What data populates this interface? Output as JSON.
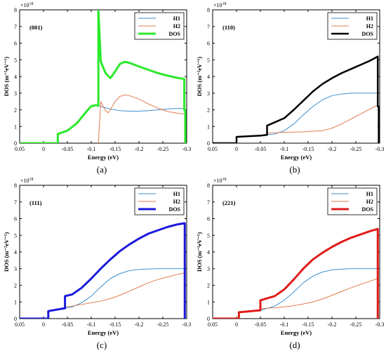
{
  "chart_data": [
    {
      "type": "line",
      "panel_label": "(001)",
      "caption": "(a)",
      "xlabel": "Energy (eV)",
      "ylabel": "DOS (m⁻²eV⁻¹)",
      "y_exponent": "×10",
      "y_exponent_power": "18",
      "xlim": [
        0.05,
        -0.3
      ],
      "ylim": [
        0,
        8
      ],
      "xticks": [
        0.05,
        0,
        -0.05,
        -0.1,
        -0.15,
        -0.2,
        -0.25,
        -0.3
      ],
      "xtick_labels": [
        "0.05",
        "0",
        "-0.05",
        "-0.1",
        "-0.15",
        "-0.2",
        "-0.25",
        "-0.3"
      ],
      "yticks": [
        0,
        1,
        2,
        3,
        4,
        5,
        6,
        7,
        8
      ],
      "ytick_labels": [
        "0",
        "1",
        "2",
        "3",
        "4",
        "5",
        "6",
        "7",
        "8"
      ],
      "grid": false,
      "legend_position": "top-right",
      "series": [
        {
          "name": "H1",
          "color": "#3a8fd0",
          "width": 1,
          "x": [
            -0.03,
            -0.05,
            -0.07,
            -0.09,
            -0.1,
            -0.11,
            -0.12,
            -0.14,
            -0.16,
            -0.18,
            -0.2,
            -0.22,
            -0.24,
            -0.26,
            -0.28,
            -0.296
          ],
          "y": [
            0.55,
            0.75,
            1.2,
            1.9,
            2.22,
            2.28,
            2.2,
            2.05,
            1.95,
            1.92,
            1.92,
            1.95,
            2.0,
            2.05,
            2.08,
            2.08
          ]
        },
        {
          "name": "H2",
          "color": "#e07b4f",
          "width": 1,
          "x": [
            -0.115,
            -0.12,
            -0.125,
            -0.13,
            -0.135,
            -0.14,
            -0.15,
            -0.16,
            -0.17,
            -0.18,
            -0.2,
            -0.22,
            -0.24,
            -0.26,
            -0.28,
            -0.295
          ],
          "y": [
            0,
            2.5,
            2.2,
            1.95,
            1.82,
            2.0,
            2.5,
            2.8,
            2.9,
            2.85,
            2.65,
            2.35,
            2.1,
            1.9,
            1.8,
            1.75
          ]
        },
        {
          "name": "DOS",
          "color": "#2be82b",
          "width": 3,
          "x": [
            0.05,
            -0.03,
            -0.03,
            -0.05,
            -0.07,
            -0.09,
            -0.1,
            -0.11,
            -0.115,
            -0.115,
            -0.12,
            -0.13,
            -0.14,
            -0.15,
            -0.16,
            -0.17,
            -0.18,
            -0.2,
            -0.22,
            -0.24,
            -0.26,
            -0.28,
            -0.295,
            -0.295,
            -0.297,
            -0.297
          ],
          "y": [
            0,
            0,
            0.55,
            0.75,
            1.2,
            1.9,
            2.22,
            2.28,
            2.25,
            8.0,
            4.9,
            4.2,
            3.9,
            4.3,
            4.75,
            4.88,
            4.82,
            4.6,
            4.4,
            4.2,
            4.05,
            3.92,
            3.85,
            2.0,
            2.0,
            0
          ]
        }
      ]
    },
    {
      "type": "line",
      "panel_label": "(110)",
      "caption": "(b)",
      "xlabel": "Energy (eV)",
      "ylabel": "DOS (m⁻²eV⁻¹)",
      "y_exponent": "×10",
      "y_exponent_power": "18",
      "xlim": [
        0.05,
        -0.3
      ],
      "ylim": [
        0,
        8
      ],
      "xticks": [
        0.05,
        0,
        -0.05,
        -0.1,
        -0.15,
        -0.2,
        -0.25,
        -0.3
      ],
      "xtick_labels": [
        "0.05",
        "0",
        "-0.05",
        "-0.1",
        "-0.15",
        "-0.2",
        "-0.25",
        "-0.3"
      ],
      "yticks": [
        0,
        1,
        2,
        3,
        4,
        5,
        6,
        7,
        8
      ],
      "ytick_labels": [
        "0",
        "1",
        "2",
        "3",
        "4",
        "5",
        "6",
        "7",
        "8"
      ],
      "grid": false,
      "legend_position": "top-right",
      "series": [
        {
          "name": "H1",
          "color": "#3a8fd0",
          "width": 1,
          "x": [
            0.0,
            -0.05,
            -0.08,
            -0.1,
            -0.12,
            -0.14,
            -0.16,
            -0.18,
            -0.2,
            -0.22,
            -0.24,
            -0.26,
            -0.28,
            -0.296
          ],
          "y": [
            0.38,
            0.45,
            0.55,
            0.75,
            1.15,
            1.7,
            2.2,
            2.6,
            2.85,
            2.95,
            3.0,
            3.0,
            3.0,
            3.0
          ]
        },
        {
          "name": "H2",
          "color": "#e07b4f",
          "width": 1,
          "x": [
            -0.064,
            -0.08,
            -0.1,
            -0.14,
            -0.18,
            -0.2,
            -0.22,
            -0.24,
            -0.26,
            -0.28,
            -0.296
          ],
          "y": [
            0.6,
            0.62,
            0.65,
            0.68,
            0.75,
            0.9,
            1.15,
            1.45,
            1.75,
            2.05,
            2.3
          ]
        },
        {
          "name": "DOS",
          "color": "#000000",
          "width": 2.5,
          "x": [
            0.05,
            0.0,
            0.0,
            -0.05,
            -0.064,
            -0.064,
            -0.08,
            -0.1,
            -0.12,
            -0.14,
            -0.16,
            -0.18,
            -0.2,
            -0.22,
            -0.24,
            -0.26,
            -0.28,
            -0.296,
            -0.296,
            -0.298,
            -0.298
          ],
          "y": [
            0,
            0,
            0.38,
            0.45,
            0.5,
            1.05,
            1.25,
            1.5,
            2.0,
            2.55,
            3.1,
            3.55,
            3.9,
            4.2,
            4.45,
            4.7,
            4.95,
            5.2,
            2.2,
            2.2,
            0
          ]
        }
      ]
    },
    {
      "type": "line",
      "panel_label": "(111)",
      "caption": "(c)",
      "xlabel": "Energy (eV)",
      "ylabel": "DOS (m⁻²eV⁻¹)",
      "y_exponent": "×10",
      "y_exponent_power": "18",
      "xlim": [
        0.05,
        -0.3
      ],
      "ylim": [
        0,
        8
      ],
      "xticks": [
        0.05,
        0,
        -0.05,
        -0.1,
        -0.15,
        -0.2,
        -0.25,
        -0.3
      ],
      "xtick_labels": [
        "0.05",
        "0",
        "-0.05",
        "-0.1",
        "-0.15",
        "-0.2",
        "-0.25",
        "-0.3"
      ],
      "yticks": [
        0,
        1,
        2,
        3,
        4,
        5,
        6,
        7,
        8
      ],
      "ytick_labels": [
        "0",
        "1",
        "2",
        "3",
        "4",
        "5",
        "6",
        "7",
        "8"
      ],
      "grid": false,
      "legend_position": "top-right",
      "series": [
        {
          "name": "H1",
          "color": "#3a8fd0",
          "width": 1,
          "x": [
            -0.01,
            -0.04,
            -0.06,
            -0.08,
            -0.1,
            -0.12,
            -0.14,
            -0.16,
            -0.18,
            -0.2,
            -0.22,
            -0.24,
            -0.26,
            -0.28,
            -0.296
          ],
          "y": [
            0.45,
            0.6,
            0.7,
            0.95,
            1.35,
            1.9,
            2.4,
            2.7,
            2.88,
            2.95,
            2.98,
            3.0,
            3.0,
            3.0,
            3.0
          ]
        },
        {
          "name": "H2",
          "color": "#e07b4f",
          "width": 1,
          "x": [
            -0.045,
            -0.06,
            -0.08,
            -0.1,
            -0.12,
            -0.14,
            -0.16,
            -0.18,
            -0.2,
            -0.22,
            -0.24,
            -0.26,
            -0.28,
            -0.296
          ],
          "y": [
            0.7,
            0.75,
            0.85,
            0.95,
            1.05,
            1.2,
            1.4,
            1.65,
            1.9,
            2.15,
            2.35,
            2.5,
            2.65,
            2.75
          ]
        },
        {
          "name": "DOS",
          "color": "#1a1adb",
          "width": 3,
          "x": [
            0.05,
            -0.01,
            -0.01,
            -0.04,
            -0.045,
            -0.045,
            -0.06,
            -0.08,
            -0.1,
            -0.12,
            -0.14,
            -0.16,
            -0.18,
            -0.2,
            -0.22,
            -0.24,
            -0.26,
            -0.28,
            -0.296,
            -0.296
          ],
          "y": [
            0,
            0,
            0.45,
            0.6,
            0.62,
            1.35,
            1.45,
            1.85,
            2.4,
            3.0,
            3.55,
            4.05,
            4.45,
            4.8,
            5.1,
            5.3,
            5.5,
            5.65,
            5.72,
            0
          ]
        }
      ]
    },
    {
      "type": "line",
      "panel_label": "(221)",
      "caption": "(d)",
      "xlabel": "Energy (eV)",
      "ylabel": "DOS (m⁻²eV⁻¹)",
      "y_exponent": "×10",
      "y_exponent_power": "18",
      "xlim": [
        0.05,
        -0.3
      ],
      "ylim": [
        0,
        8
      ],
      "xticks": [
        0.05,
        0,
        -0.05,
        -0.1,
        -0.15,
        -0.2,
        -0.25,
        -0.3
      ],
      "xtick_labels": [
        "0.05",
        "0",
        "-0.05",
        "-0.1",
        "-0.15",
        "-0.2",
        "-0.25",
        "-0.3"
      ],
      "yticks": [
        0,
        1,
        2,
        3,
        4,
        5,
        6,
        7,
        8
      ],
      "ytick_labels": [
        "0",
        "1",
        "2",
        "3",
        "4",
        "5",
        "6",
        "7",
        "8"
      ],
      "grid": false,
      "legend_position": "top-right",
      "series": [
        {
          "name": "H1",
          "color": "#3a8fd0",
          "width": 1,
          "x": [
            -0.005,
            -0.05,
            -0.08,
            -0.1,
            -0.12,
            -0.14,
            -0.16,
            -0.18,
            -0.2,
            -0.22,
            -0.24,
            -0.26,
            -0.28,
            -0.296
          ],
          "y": [
            0.38,
            0.5,
            0.75,
            1.1,
            1.6,
            2.15,
            2.55,
            2.8,
            2.92,
            2.97,
            3.0,
            3.0,
            3.0,
            3.0
          ]
        },
        {
          "name": "H2",
          "color": "#e07b4f",
          "width": 1,
          "x": [
            -0.05,
            -0.08,
            -0.1,
            -0.12,
            -0.14,
            -0.16,
            -0.18,
            -0.2,
            -0.22,
            -0.24,
            -0.26,
            -0.28,
            -0.296
          ],
          "y": [
            0.6,
            0.65,
            0.7,
            0.78,
            0.88,
            1.0,
            1.18,
            1.4,
            1.62,
            1.85,
            2.05,
            2.25,
            2.4
          ]
        },
        {
          "name": "DOS",
          "color": "#e01b1b",
          "width": 3,
          "x": [
            0.05,
            -0.005,
            -0.005,
            -0.05,
            -0.05,
            -0.08,
            -0.1,
            -0.12,
            -0.14,
            -0.16,
            -0.18,
            -0.2,
            -0.22,
            -0.24,
            -0.26,
            -0.28,
            -0.296,
            -0.296
          ],
          "y": [
            0,
            0,
            0.38,
            0.5,
            1.1,
            1.35,
            1.75,
            2.35,
            3.0,
            3.55,
            3.95,
            4.3,
            4.6,
            4.85,
            5.05,
            5.25,
            5.38,
            0
          ]
        }
      ]
    }
  ]
}
